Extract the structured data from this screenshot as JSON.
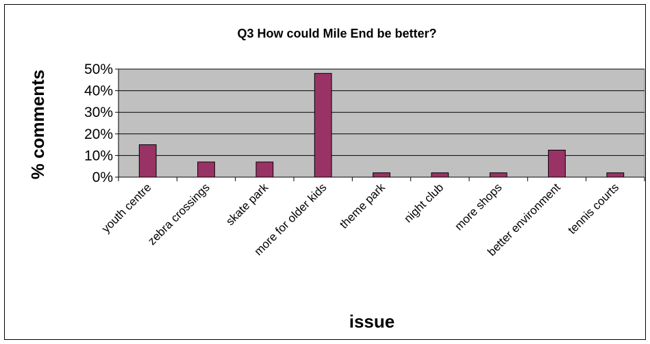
{
  "chart_data": {
    "type": "bar",
    "title": "Q3 How could Mile End be better?",
    "xlabel": "issue",
    "ylabel": "% comments",
    "categories": [
      "youth centre",
      "zebra crossings",
      "skate park",
      "more for older kids",
      "theme park",
      "night club",
      "more shops",
      "better environment",
      "tennis courts"
    ],
    "values": [
      15,
      7,
      7,
      48,
      2,
      2,
      2,
      12.5,
      2
    ],
    "ylim": [
      0,
      50
    ],
    "yticks": [
      "0%",
      "10%",
      "20%",
      "30%",
      "40%",
      "50%"
    ],
    "grid": true,
    "colors": {
      "bar": "#993366",
      "plot_bg": "#c0c0c0",
      "grid": "#000000"
    }
  }
}
